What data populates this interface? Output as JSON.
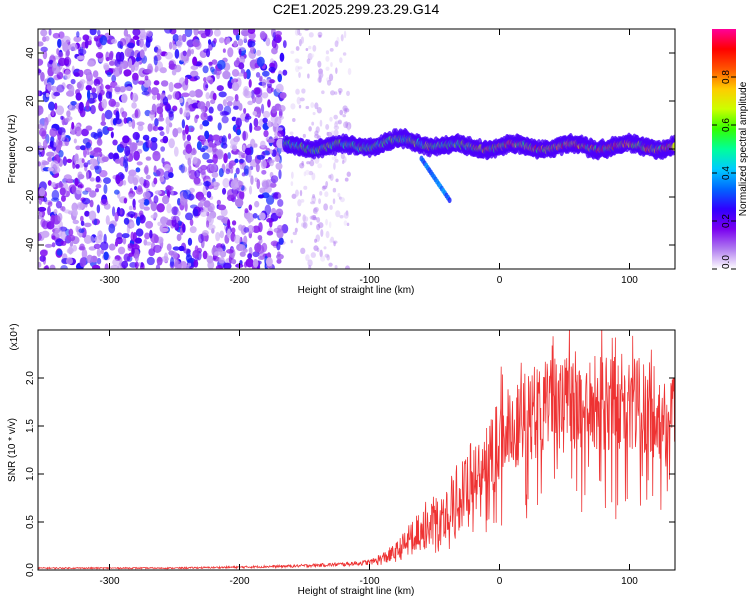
{
  "title": "C2E1.2025.299.23.29.G14",
  "chart_data": [
    {
      "type": "heatmap",
      "title": "C2E1.2025.299.23.29.G14",
      "xlabel": "Height of straight line (km)",
      "ylabel": "Frequency (Hz)",
      "xlim": [
        -355,
        135
      ],
      "ylim": [
        -50,
        50
      ],
      "xticks": [
        -300,
        -200,
        -100,
        0,
        100
      ],
      "xtick_labels": [
        "-300",
        "-200",
        "-100",
        "0",
        "100"
      ],
      "yticks": [
        -40,
        -20,
        0,
        20,
        40
      ],
      "ytick_labels": [
        "-40",
        "-20",
        "0",
        "20",
        "40"
      ],
      "colorbar": {
        "label": "Normalized spectral amplitude",
        "range": [
          0.0,
          1.0
        ],
        "ticks": [
          0.0,
          0.2,
          0.4,
          0.6,
          0.8
        ],
        "tick_labels": [
          "0.0",
          "0.2",
          "0.4",
          "0.6",
          "0.8"
        ],
        "colormap": [
          "#ffffff",
          "#b07cf0",
          "#7a00f0",
          "#3000ff",
          "#0066ff",
          "#00ccff",
          "#00ff99",
          "#33ff00",
          "#ccff00",
          "#ffcc00",
          "#ff5500",
          "#ff0000",
          "#ff0099"
        ]
      },
      "regions": [
        {
          "description": "scattered noise",
          "x_range": [
            -355,
            -165
          ],
          "freq_range": [
            -50,
            50
          ],
          "amplitude_range": [
            0.05,
            0.3
          ]
        },
        {
          "description": "sparse noise",
          "x_range": [
            -160,
            -115
          ],
          "freq_range": [
            -50,
            50
          ],
          "amplitude_range": [
            0.02,
            0.1
          ]
        },
        {
          "description": "signal band",
          "x_range": [
            -165,
            135
          ],
          "freq_center": 1,
          "freq_halfwidth": 5,
          "amplitude_range": [
            0.3,
            0.95
          ]
        }
      ]
    },
    {
      "type": "line",
      "xlabel": "Height of straight line (km)",
      "ylabel": "SNR (10 * v/v)",
      "y_multiplier": "(x10⁴)",
      "xlim": [
        -355,
        135
      ],
      "ylim": [
        0,
        2.5
      ],
      "xticks": [
        -300,
        -200,
        -100,
        0,
        100
      ],
      "xtick_labels": [
        "-300",
        "-200",
        "-100",
        "0",
        "100"
      ],
      "yticks": [
        0.0,
        0.5,
        1.0,
        1.5,
        2.0
      ],
      "ytick_labels": [
        "0.0",
        "0.5",
        "1.0",
        "1.5",
        "2.0"
      ],
      "series": [
        {
          "name": "SNR",
          "color": "#ee3333",
          "x": [
            -355,
            -300,
            -250,
            -200,
            -160,
            -140,
            -120,
            -100,
            -90,
            -80,
            -70,
            -60,
            -50,
            -40,
            -30,
            -20,
            -10,
            0,
            10,
            20,
            30,
            40,
            50,
            60,
            70,
            80,
            90,
            100,
            110,
            120,
            135
          ],
          "y": [
            0.02,
            0.02,
            0.02,
            0.03,
            0.04,
            0.05,
            0.06,
            0.08,
            0.12,
            0.18,
            0.3,
            0.45,
            0.5,
            0.6,
            0.75,
            1.0,
            1.2,
            1.35,
            1.5,
            1.6,
            1.65,
            1.7,
            1.72,
            1.73,
            1.74,
            1.75,
            1.74,
            1.72,
            1.7,
            1.65,
            1.6
          ]
        }
      ]
    }
  ]
}
